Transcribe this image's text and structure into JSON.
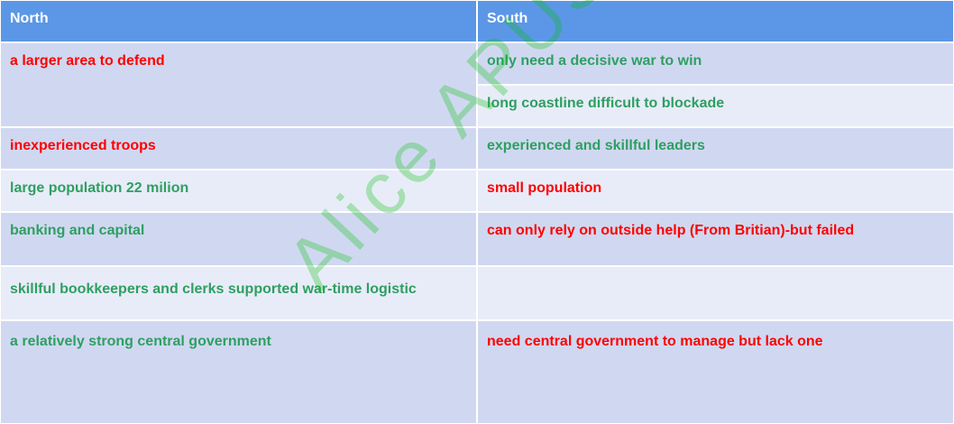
{
  "header": {
    "north": "North",
    "south": "South"
  },
  "rows": [
    {
      "north": "a larger area to defend",
      "south": "only need a decisive war to win"
    },
    {
      "south": "long coastline difficult to blockade"
    },
    {
      "north": "inexperienced troops",
      "south": "experienced and skillful leaders"
    },
    {
      "north": "large population 22 milion",
      "south": "small population"
    },
    {
      "north": "banking and capital",
      "south": "can only rely on outside help (From Britian)-but failed"
    },
    {
      "north": "skillful bookkeepers and clerks supported war-time logistic",
      "south": ""
    },
    {
      "north": "a relatively strong central government",
      "south": "need central government to manage but lack one"
    }
  ],
  "watermark": "Alice APUSH",
  "colors": {
    "header": "#5b97e6",
    "advantage": "#2e9f62",
    "disadvantage": "#ff0000"
  }
}
